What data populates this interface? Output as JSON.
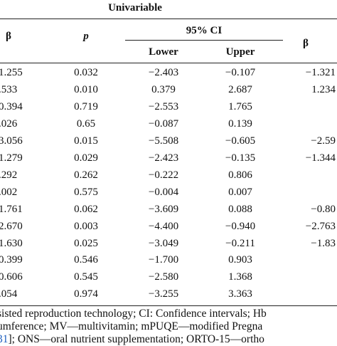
{
  "header": {
    "group": "Univariable",
    "beta": "β",
    "p": "p",
    "ci": "95% CI",
    "lower": "Lower",
    "upper": "Upper",
    "beta_right": "β"
  },
  "rows": [
    {
      "beta": "1.255",
      "p": "0.032",
      "lower": "−2.403",
      "upper": "−0.107",
      "beta2": "−1.321"
    },
    {
      "beta": ".533",
      "p": "0.010",
      "lower": "0.379",
      "upper": "2.687",
      "beta2": "1.234"
    },
    {
      "beta": "0.394",
      "p": "0.719",
      "lower": "−2.553",
      "upper": "1.765",
      "beta2": ""
    },
    {
      "beta": ".026",
      "p": "0.65",
      "lower": "−0.087",
      "upper": "0.139",
      "beta2": ""
    },
    {
      "beta": "3.056",
      "p": "0.015",
      "lower": "−5.508",
      "upper": "−0.605",
      "beta2": "−2.59"
    },
    {
      "beta": "1.279",
      "p": "0.029",
      "lower": "−2.423",
      "upper": "−0.135",
      "beta2": "−1.344"
    },
    {
      "beta": ".292",
      "p": "0.262",
      "lower": "−0.222",
      "upper": "0.806",
      "beta2": ""
    },
    {
      "beta": ".002",
      "p": "0.575",
      "lower": "−0.004",
      "upper": "0.007",
      "beta2": ""
    },
    {
      "beta": "1.761",
      "p": "0.062",
      "lower": "−3.609",
      "upper": "0.088",
      "beta2": "−0.80"
    },
    {
      "beta": "2.670",
      "p": "0.003",
      "lower": "−4.400",
      "upper": "−0.940",
      "beta2": "−2.763"
    },
    {
      "beta": "1.630",
      "p": "0.025",
      "lower": "−3.049",
      "upper": "−0.211",
      "beta2": "−1.83"
    },
    {
      "beta": "0.399",
      "p": "0.546",
      "lower": "−1.700",
      "upper": "0.903",
      "beta2": ""
    },
    {
      "beta": "0.606",
      "p": "0.545",
      "lower": "−2.580",
      "upper": "1.368",
      "beta2": ""
    },
    {
      "beta": ".054",
      "p": "0.974",
      "lower": "−3.255",
      "upper": "3.363",
      "beta2": ""
    }
  ],
  "footnotes": {
    "line1": "sisted reproduction technology; CI: Confidence intervals; Hb",
    "line2": "umference; MV—multivitamin; mPUQE—modified Pregna",
    "line3_link": "31",
    "line3_rest": "]; ONS—oral nutrient supplementation; ORTO-15—ortho"
  }
}
